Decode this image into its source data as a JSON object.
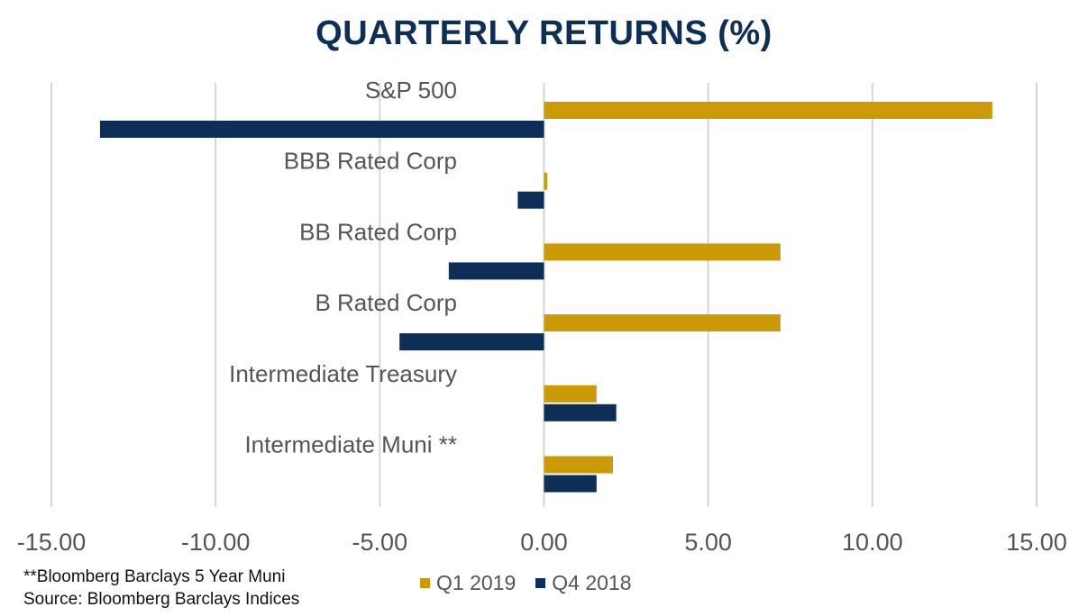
{
  "chart_data": {
    "type": "bar",
    "orientation": "horizontal",
    "title": "QUARTERLY RETURNS (%)",
    "categories": [
      "S&P 500",
      "BBB Rated Corp",
      "BB Rated Corp",
      "B Rated Corp",
      "Intermediate Treasury",
      "Intermediate Muni **"
    ],
    "series": [
      {
        "name": "Q1 2019",
        "color": "#cc9a06",
        "values": [
          13.65,
          0.1,
          7.2,
          7.2,
          1.6,
          2.1
        ]
      },
      {
        "name": "Q4 2018",
        "color": "#0d2e56",
        "values": [
          -13.52,
          -0.8,
          -2.9,
          -4.4,
          2.2,
          1.6
        ]
      }
    ],
    "xlim": [
      -15,
      15
    ],
    "xticks": [
      -15,
      -10,
      -5,
      0,
      5,
      10,
      15
    ],
    "xtick_labels": [
      "-15.00",
      "-10.00",
      "-5.00",
      "0.00",
      "5.00",
      "10.00",
      "15.00"
    ],
    "grid": true,
    "legend_position": "bottom"
  },
  "footnotes": {
    "note1": "**Bloomberg Barclays 5 Year Muni",
    "note2": "Source:  Bloomberg Barclays Indices"
  }
}
